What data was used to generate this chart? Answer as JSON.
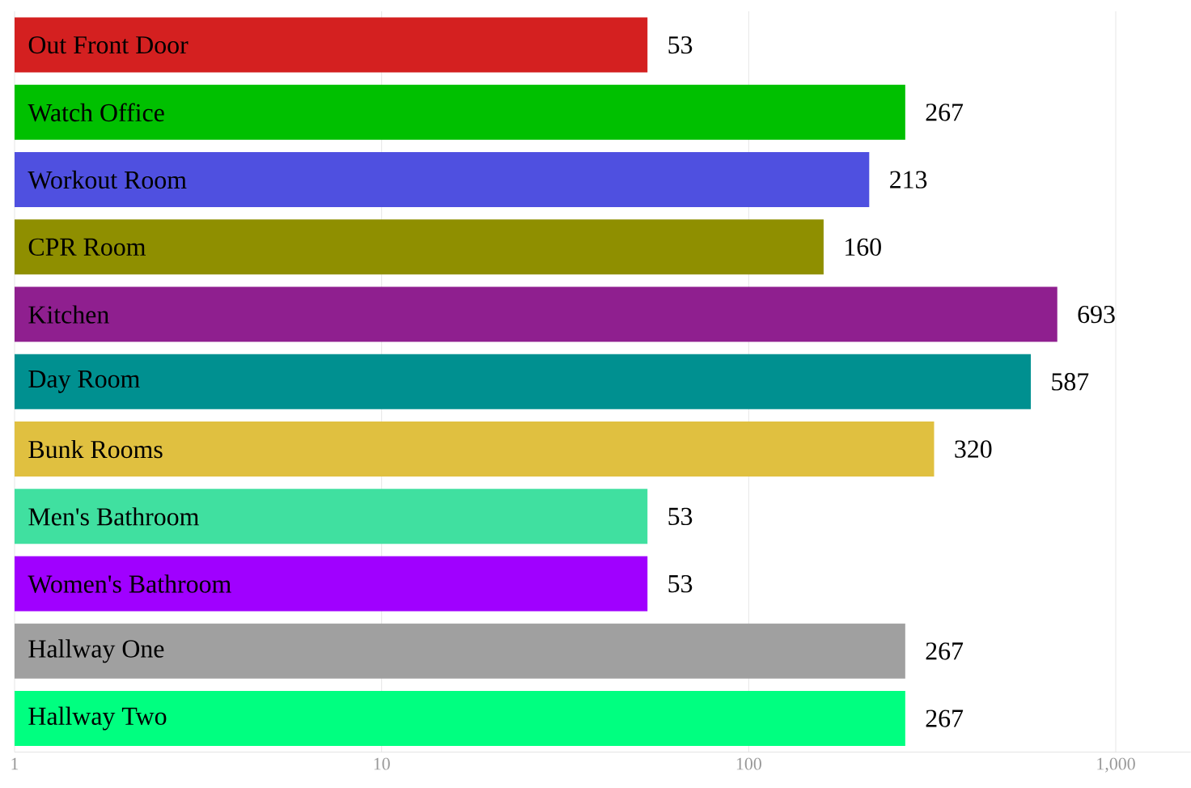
{
  "chart_data": {
    "type": "bar",
    "orientation": "horizontal",
    "log": "x",
    "categories": [
      "Out Front Door",
      "Watch Office",
      "Workout Room",
      "CPR Room",
      "Kitchen",
      "Day Room",
      "Bunk Rooms",
      "Men's Bathroom",
      "Women's Bathroom",
      "Hallway One",
      "Hallway Two"
    ],
    "values": [
      53,
      267,
      213,
      160,
      693,
      587,
      320,
      53,
      53,
      267,
      267
    ],
    "colors": [
      "#d42020",
      "#00c000",
      "#4f50e0",
      "#8f8f00",
      "#8f1f8f",
      "#009090",
      "#e0c040",
      "#40e0a0",
      "#a000ff",
      "#a0a0a0",
      "#00ff80"
    ],
    "xlim": [
      1,
      1600
    ],
    "xticks": [
      1,
      10,
      100,
      {
        "value": 1000,
        "label": "1,000"
      }
    ],
    "grid": "x",
    "data_labels": true
  }
}
